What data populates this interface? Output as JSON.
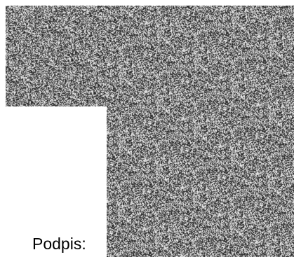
{
  "form": {
    "signature_label": "Podpis:"
  },
  "colors": {
    "background": "#ffffff",
    "noise_dark": "#1a1a1a",
    "noise_light": "#f2f2f2"
  }
}
